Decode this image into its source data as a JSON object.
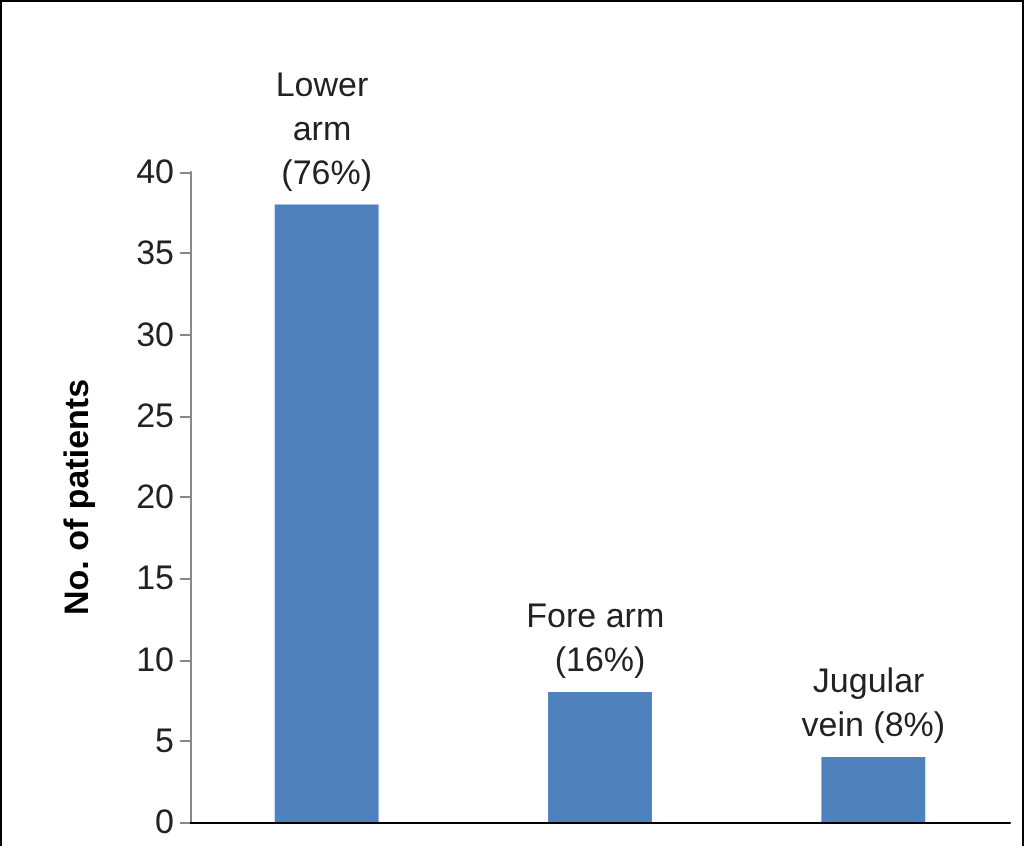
{
  "chart_data": {
    "type": "bar",
    "ylabel": "No. of patients",
    "categories": [
      "Lower arm (76%)",
      "Fore arm (16%)",
      "Jugular vein (8%)"
    ],
    "values": [
      38,
      8,
      4
    ],
    "color": "#4f81bd",
    "ylim": [
      0,
      40
    ],
    "yticks": [
      0,
      5,
      10,
      15,
      20,
      25,
      30,
      35,
      40
    ],
    "grid": false
  }
}
